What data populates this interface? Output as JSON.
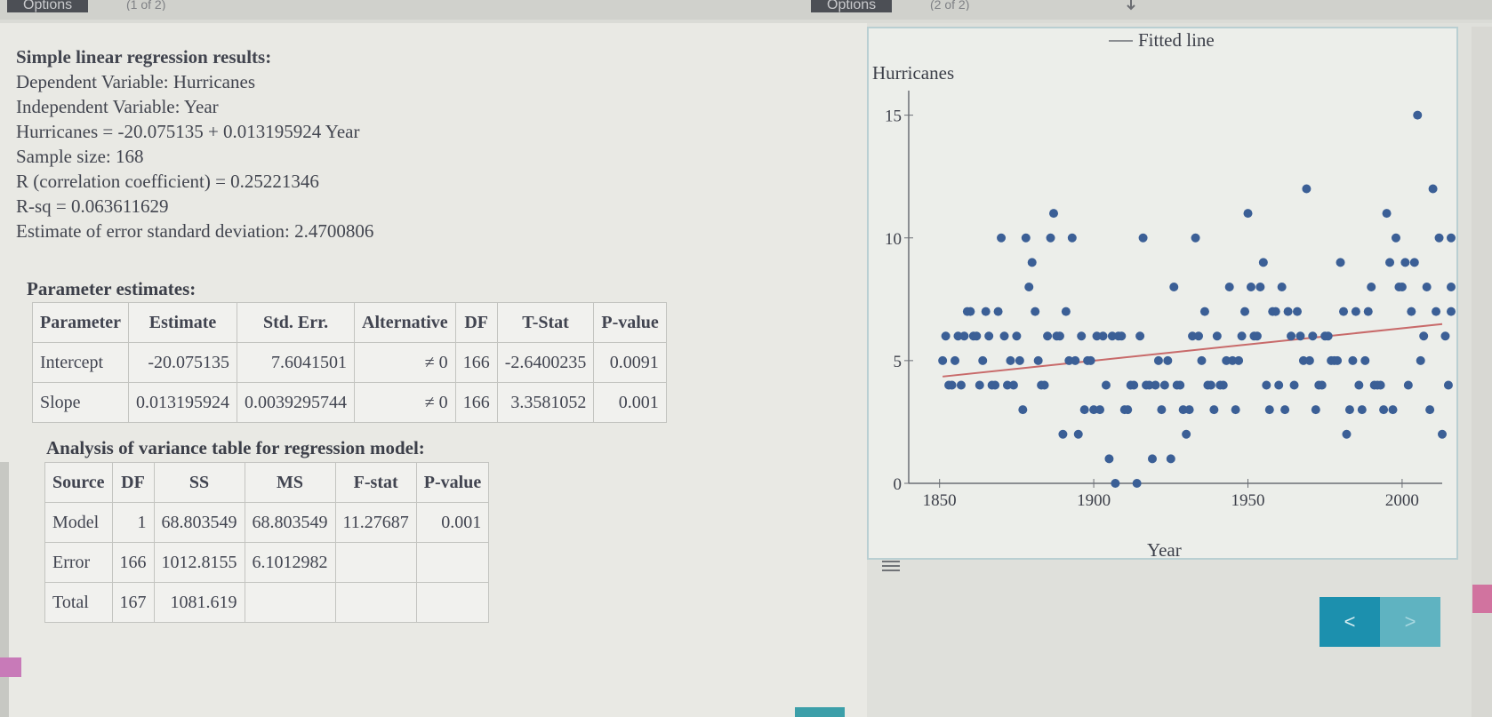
{
  "tabs": [
    {
      "label": "Options",
      "note": "(1 of 2)"
    },
    {
      "label": "Options",
      "note": "(2 of 2)"
    }
  ],
  "results": {
    "heading": "Simple linear regression results:",
    "lines": [
      "Dependent Variable: Hurricanes",
      "Independent Variable: Year",
      "Hurricanes = -20.075135 + 0.013195924 Year",
      "Sample size: 168",
      "R (correlation coefficient) = 0.25221346",
      "R-sq = 0.063611629",
      "Estimate of error standard deviation: 2.4700806"
    ]
  },
  "parameter_table": {
    "title": "Parameter estimates:",
    "headers": [
      "Parameter",
      "Estimate",
      "Std. Err.",
      "Alternative",
      "DF",
      "T-Stat",
      "P-value"
    ],
    "rows": [
      [
        "Intercept",
        "-20.075135",
        "7.6041501",
        "≠ 0",
        "166",
        "-2.6400235",
        "0.0091"
      ],
      [
        "Slope",
        "0.013195924",
        "0.0039295744",
        "≠ 0",
        "166",
        "3.3581052",
        "0.001"
      ]
    ]
  },
  "anova_table": {
    "title": "Analysis of variance table for regression model:",
    "headers": [
      "Source",
      "DF",
      "SS",
      "MS",
      "F-stat",
      "P-value"
    ],
    "rows": [
      [
        "Model",
        "1",
        "68.803549",
        "68.803549",
        "11.27687",
        "0.001"
      ],
      [
        "Error",
        "166",
        "1012.8155",
        "6.1012982",
        "",
        ""
      ],
      [
        "Total",
        "167",
        "1081.619",
        "",
        "",
        ""
      ]
    ]
  },
  "navigation": {
    "prev_label": "<",
    "next_label": ">"
  },
  "chart_data": {
    "type": "scatter",
    "xlabel": "Year",
    "ylabel": "Hurricanes",
    "legend": {
      "label": "Fitted line",
      "placement": "top"
    },
    "xlim": [
      1840,
      2013
    ],
    "ylim": [
      0,
      16
    ],
    "x_ticks": [
      1850,
      1900,
      1950,
      2000
    ],
    "y_ticks": [
      0,
      5,
      10,
      15
    ],
    "fitted_line": {
      "intercept": -20.075135,
      "slope": 0.013195924
    },
    "colors": {
      "points": "#3b5f96",
      "line": "#c86a6a",
      "axis": "#6b6e75"
    },
    "points": [
      [
        1851,
        5
      ],
      [
        1852,
        6
      ],
      [
        1853,
        4
      ],
      [
        1854,
        4
      ],
      [
        1855,
        5
      ],
      [
        1856,
        6
      ],
      [
        1857,
        4
      ],
      [
        1858,
        6
      ],
      [
        1859,
        7
      ],
      [
        1860,
        7
      ],
      [
        1861,
        6
      ],
      [
        1862,
        6
      ],
      [
        1863,
        4
      ],
      [
        1864,
        5
      ],
      [
        1865,
        7
      ],
      [
        1866,
        6
      ],
      [
        1867,
        4
      ],
      [
        1868,
        4
      ],
      [
        1869,
        7
      ],
      [
        1870,
        10
      ],
      [
        1871,
        6
      ],
      [
        1872,
        4
      ],
      [
        1873,
        5
      ],
      [
        1874,
        4
      ],
      [
        1875,
        6
      ],
      [
        1876,
        5
      ],
      [
        1877,
        3
      ],
      [
        1878,
        10
      ],
      [
        1879,
        8
      ],
      [
        1880,
        9
      ],
      [
        1881,
        7
      ],
      [
        1882,
        5
      ],
      [
        1883,
        4
      ],
      [
        1884,
        4
      ],
      [
        1885,
        6
      ],
      [
        1886,
        10
      ],
      [
        1887,
        11
      ],
      [
        1888,
        6
      ],
      [
        1889,
        6
      ],
      [
        1890,
        2
      ],
      [
        1891,
        7
      ],
      [
        1892,
        5
      ],
      [
        1893,
        10
      ],
      [
        1894,
        5
      ],
      [
        1895,
        2
      ],
      [
        1896,
        6
      ],
      [
        1897,
        3
      ],
      [
        1898,
        5
      ],
      [
        1899,
        5
      ],
      [
        1900,
        3
      ],
      [
        1901,
        6
      ],
      [
        1902,
        3
      ],
      [
        1903,
        6
      ],
      [
        1904,
        4
      ],
      [
        1905,
        1
      ],
      [
        1906,
        6
      ],
      [
        1907,
        0
      ],
      [
        1908,
        6
      ],
      [
        1909,
        6
      ],
      [
        1910,
        3
      ],
      [
        1911,
        3
      ],
      [
        1912,
        4
      ],
      [
        1913,
        4
      ],
      [
        1914,
        0
      ],
      [
        1915,
        6
      ],
      [
        1916,
        10
      ],
      [
        1917,
        4
      ],
      [
        1918,
        4
      ],
      [
        1919,
        1
      ],
      [
        1920,
        4
      ],
      [
        1921,
        5
      ],
      [
        1922,
        3
      ],
      [
        1923,
        4
      ],
      [
        1924,
        5
      ],
      [
        1925,
        1
      ],
      [
        1926,
        8
      ],
      [
        1927,
        4
      ],
      [
        1928,
        4
      ],
      [
        1929,
        3
      ],
      [
        1930,
        2
      ],
      [
        1931,
        3
      ],
      [
        1932,
        6
      ],
      [
        1933,
        10
      ],
      [
        1934,
        6
      ],
      [
        1935,
        5
      ],
      [
        1936,
        7
      ],
      [
        1937,
        4
      ],
      [
        1938,
        4
      ],
      [
        1939,
        3
      ],
      [
        1940,
        6
      ],
      [
        1941,
        4
      ],
      [
        1942,
        4
      ],
      [
        1943,
        5
      ],
      [
        1944,
        8
      ],
      [
        1945,
        5
      ],
      [
        1946,
        3
      ],
      [
        1947,
        5
      ],
      [
        1948,
        6
      ],
      [
        1949,
        7
      ],
      [
        1950,
        11
      ],
      [
        1951,
        8
      ],
      [
        1952,
        6
      ],
      [
        1953,
        6
      ],
      [
        1954,
        8
      ],
      [
        1955,
        9
      ],
      [
        1956,
        4
      ],
      [
        1957,
        3
      ],
      [
        1958,
        7
      ],
      [
        1959,
        7
      ],
      [
        1960,
        4
      ],
      [
        1961,
        8
      ],
      [
        1962,
        3
      ],
      [
        1963,
        7
      ],
      [
        1964,
        6
      ],
      [
        1965,
        4
      ],
      [
        1966,
        7
      ],
      [
        1967,
        6
      ],
      [
        1968,
        5
      ],
      [
        1969,
        12
      ],
      [
        1970,
        5
      ],
      [
        1971,
        6
      ],
      [
        1972,
        3
      ],
      [
        1973,
        4
      ],
      [
        1974,
        4
      ],
      [
        1975,
        6
      ],
      [
        1976,
        6
      ],
      [
        1977,
        5
      ],
      [
        1978,
        5
      ],
      [
        1979,
        5
      ],
      [
        1980,
        9
      ],
      [
        1981,
        7
      ],
      [
        1982,
        2
      ],
      [
        1983,
        3
      ],
      [
        1984,
        5
      ],
      [
        1985,
        7
      ],
      [
        1986,
        4
      ],
      [
        1987,
        3
      ],
      [
        1988,
        5
      ],
      [
        1989,
        7
      ],
      [
        1990,
        8
      ],
      [
        1991,
        4
      ],
      [
        1992,
        4
      ],
      [
        1993,
        4
      ],
      [
        1994,
        3
      ],
      [
        1995,
        11
      ],
      [
        1996,
        9
      ],
      [
        1997,
        3
      ],
      [
        1998,
        10
      ],
      [
        1999,
        8
      ],
      [
        2000,
        8
      ],
      [
        2001,
        9
      ],
      [
        2002,
        4
      ],
      [
        2003,
        7
      ],
      [
        2004,
        9
      ],
      [
        2005,
        15
      ],
      [
        2006,
        5
      ],
      [
        2007,
        6
      ],
      [
        2008,
        8
      ],
      [
        2009,
        3
      ],
      [
        2010,
        12
      ],
      [
        2011,
        7
      ],
      [
        2012,
        10
      ],
      [
        2013,
        2
      ],
      [
        2014,
        6
      ],
      [
        2015,
        4
      ],
      [
        2016,
        7
      ],
      [
        2017,
        10
      ],
      [
        2018,
        8
      ]
    ]
  }
}
